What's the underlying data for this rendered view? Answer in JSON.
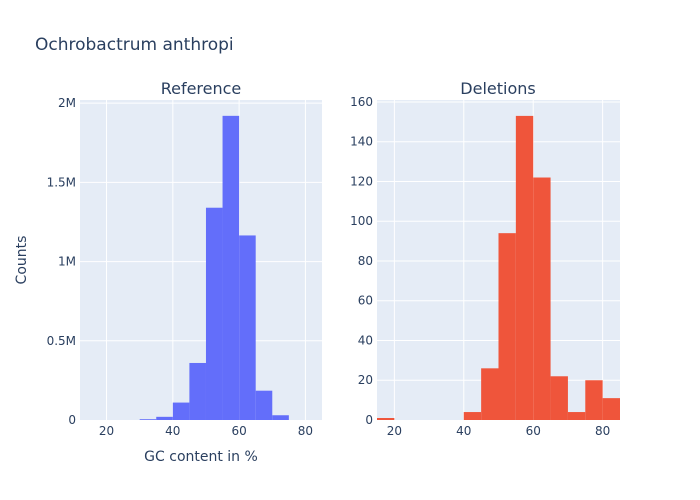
{
  "title": "Ochrobactrum anthropi",
  "chart_data": [
    {
      "type": "bar",
      "title": "Reference",
      "xlabel": "GC content in %",
      "ylabel": "Counts",
      "xlim": [
        12,
        85
      ],
      "ylim": [
        0,
        2020000
      ],
      "xticks": [
        20,
        40,
        60,
        80
      ],
      "yticks": [
        0,
        500000,
        1000000,
        1500000,
        2000000
      ],
      "ytick_labels": [
        "0",
        "0.5M",
        "1M",
        "1.5M",
        "2M"
      ],
      "bin_width": 5,
      "bin_starts": [
        30,
        35,
        40,
        45,
        50,
        55,
        60,
        65,
        70
      ],
      "values": [
        5000,
        20000,
        110000,
        360000,
        1340000,
        1920000,
        1165000,
        185000,
        30000
      ],
      "color": "#636efa"
    },
    {
      "type": "bar",
      "title": "Deletions",
      "xlabel": "",
      "ylabel": "",
      "xlim": [
        15,
        85
      ],
      "ylim": [
        0,
        161
      ],
      "xticks": [
        20,
        40,
        60,
        80
      ],
      "yticks": [
        0,
        20,
        40,
        60,
        80,
        100,
        120,
        140,
        160
      ],
      "ytick_labels": [
        "0",
        "20",
        "40",
        "60",
        "80",
        "100",
        "120",
        "140",
        "160"
      ],
      "bin_width": 5,
      "bin_starts": [
        15,
        40,
        45,
        50,
        55,
        60,
        65,
        70,
        75,
        80
      ],
      "values": [
        1,
        4,
        26,
        94,
        153,
        122,
        22,
        4,
        20,
        11
      ],
      "color": "#ef553b"
    }
  ]
}
